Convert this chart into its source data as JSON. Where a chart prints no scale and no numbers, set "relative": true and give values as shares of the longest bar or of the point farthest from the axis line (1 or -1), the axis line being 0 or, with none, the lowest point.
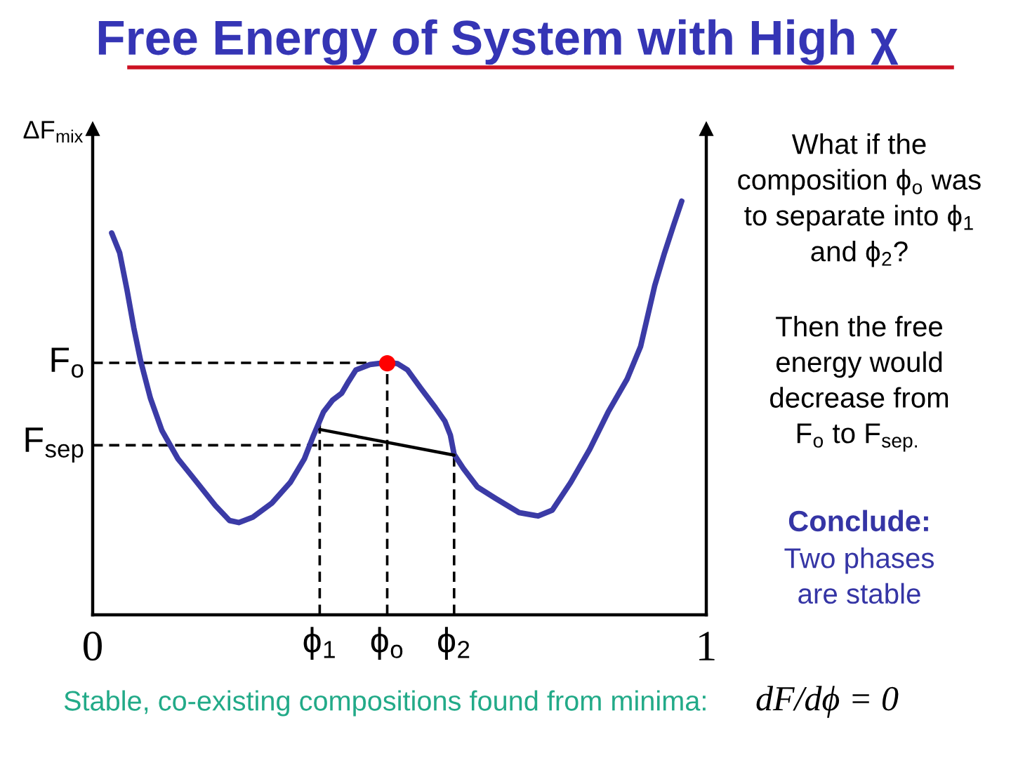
{
  "chart_data": {
    "type": "line",
    "title": "Free Energy of System with High χ",
    "ylabel": "ΔF$_{mix}$",
    "relative": true,
    "xlim": [
      0,
      1
    ],
    "xticks": [
      0,
      1
    ],
    "series": [
      {
        "color": "#3b3ba6",
        "x": [
          0.031,
          0.044,
          0.056,
          0.067,
          0.078,
          0.094,
          0.113,
          0.139,
          0.17,
          0.2,
          0.223,
          0.238,
          0.261,
          0.292,
          0.322,
          0.345,
          0.36,
          0.376,
          0.391,
          0.406,
          0.417,
          0.429,
          0.452,
          0.48,
          0.497,
          0.513,
          0.535,
          0.558,
          0.574,
          0.583,
          0.589,
          0.604,
          0.627,
          0.657,
          0.695,
          0.726,
          0.749,
          0.779,
          0.81,
          0.84,
          0.871,
          0.893,
          0.916,
          0.932,
          0.947,
          0.96
        ],
        "values": [
          0.923,
          0.875,
          0.785,
          0.694,
          0.615,
          0.524,
          0.445,
          0.377,
          0.32,
          0.264,
          0.228,
          0.223,
          0.236,
          0.27,
          0.32,
          0.377,
          0.434,
          0.49,
          0.519,
          0.536,
          0.564,
          0.592,
          0.605,
          0.61,
          0.607,
          0.592,
          0.547,
          0.502,
          0.468,
          0.434,
          0.388,
          0.354,
          0.309,
          0.281,
          0.247,
          0.239,
          0.253,
          0.32,
          0.4,
          0.49,
          0.57,
          0.649,
          0.796,
          0.875,
          0.943,
          1.0
        ]
      },
      {
        "type": "line",
        "color": "#000000",
        "x": [
          0.37,
          0.589
        ],
        "values": [
          0.448,
          0.386
        ]
      },
      {
        "type": "scatter",
        "color": "#ff0000",
        "x": [
          0.48
        ],
        "values": [
          0.608
        ]
      }
    ],
    "ref_lines": [
      {
        "axis": "y",
        "value": 0.609,
        "label": "F$_{o}$",
        "color": "#000000",
        "line_style": "dashed"
      },
      {
        "axis": "y",
        "value": 0.41,
        "label": "F$_{sep}$",
        "color": "#000000",
        "line_style": "dashed"
      },
      {
        "axis": "x",
        "value": 0.37,
        "label": "ϕ$_{1}$",
        "color": "#000000",
        "line_style": "dashed"
      },
      {
        "axis": "x",
        "value": 0.48,
        "label": "ϕ$_{o}$",
        "color": "#000000",
        "line_style": "dashed"
      },
      {
        "axis": "x",
        "value": 0.589,
        "label": "ϕ$_{2}$",
        "color": "#000000",
        "line_style": "dashed"
      }
    ],
    "annotations": [
      "What if the\ncomposition ϕ$_{o}$ was\nto separate into ϕ$_{1}$\nand ϕ$_{2}$?",
      "Then the free\nenergy would\ndecrease from\nF$_{o}$ to F$_{sep.}$",
      "Conclude:",
      "Two phases\nare stable",
      "Stable, co-existing compositions found from minima:",
      "dF/dϕ = 0"
    ]
  }
}
